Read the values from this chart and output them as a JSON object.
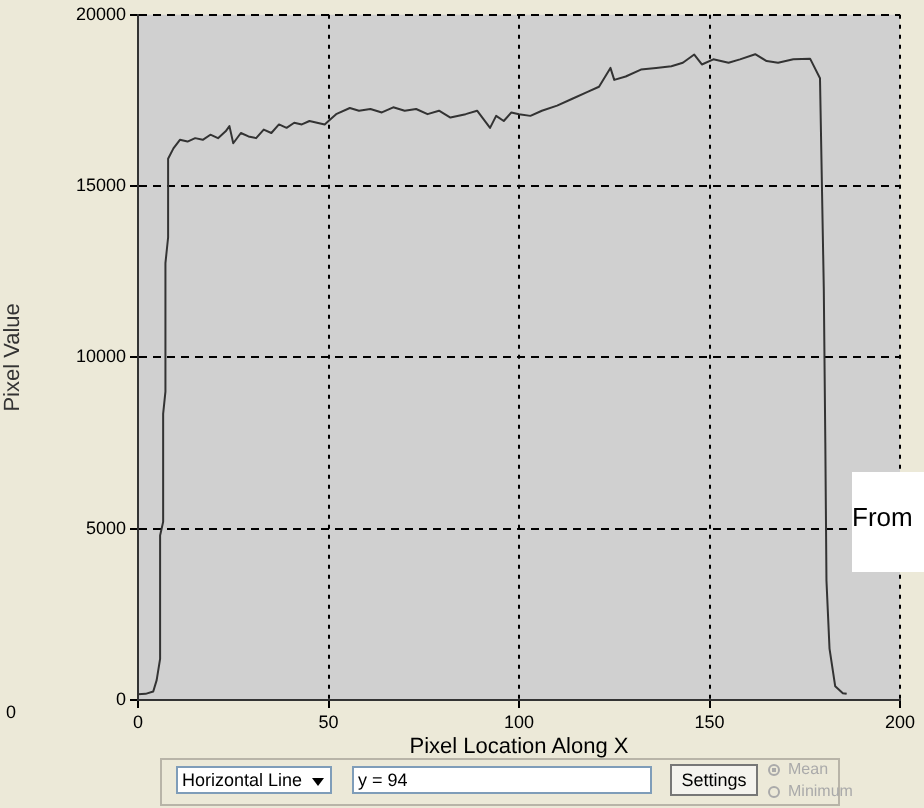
{
  "chart_data": {
    "type": "line",
    "xlabel": "Pixel Location Along X",
    "ylabel": "Pixel Value",
    "annotations": [
      "From",
      "0",
      "Horizontal Line",
      "y = 94",
      "Settings",
      "Mean",
      "Minimum"
    ],
    "x": [
      0,
      2,
      4,
      4.9,
      5.8,
      5.8,
      6.6,
      6.6,
      7.2,
      7.2,
      7.9,
      7.9,
      9.3,
      11,
      13,
      15,
      17,
      19,
      21,
      23,
      24,
      25,
      27,
      29,
      31,
      33,
      35,
      37,
      39,
      41,
      43,
      45,
      47,
      49,
      50,
      52,
      55.6,
      58,
      61,
      64,
      67,
      70,
      73,
      76,
      79,
      82,
      86,
      89,
      92.4,
      94,
      96,
      98,
      100,
      103,
      106,
      110,
      114,
      118,
      121,
      124,
      125,
      128,
      132,
      136,
      140,
      143,
      146,
      148,
      151,
      155,
      158,
      162,
      165,
      168,
      172,
      176.4,
      179,
      180,
      180.4,
      180.7,
      181.5,
      183,
      185,
      186
    ],
    "values": [
      170,
      180,
      250,
      580,
      1200,
      4800,
      5200,
      8350,
      9000,
      12750,
      13500,
      15800,
      16100,
      16350,
      16300,
      16400,
      16350,
      16500,
      16400,
      16600,
      16750,
      16250,
      16550,
      16450,
      16400,
      16650,
      16550,
      16800,
      16700,
      16850,
      16800,
      16900,
      16850,
      16800,
      16900,
      17100,
      17280,
      17200,
      17250,
      17150,
      17300,
      17200,
      17250,
      17100,
      17200,
      17000,
      17100,
      17200,
      16700,
      17050,
      16900,
      17150,
      17100,
      17050,
      17200,
      17350,
      17550,
      17750,
      17900,
      18450,
      18100,
      18200,
      18400,
      18450,
      18500,
      18600,
      18840,
      18550,
      18700,
      18600,
      18700,
      18850,
      18650,
      18600,
      18700,
      18720,
      18150,
      12000,
      7500,
      3480,
      1500,
      400,
      200,
      180
    ],
    "color": "#333333",
    "xlim": [
      0,
      200
    ],
    "xticks": [
      0,
      50,
      100,
      150,
      200
    ],
    "ylim": [
      0,
      20000
    ],
    "yticks": [
      0,
      5000,
      10000,
      15000,
      20000
    ],
    "grid": true
  }
}
